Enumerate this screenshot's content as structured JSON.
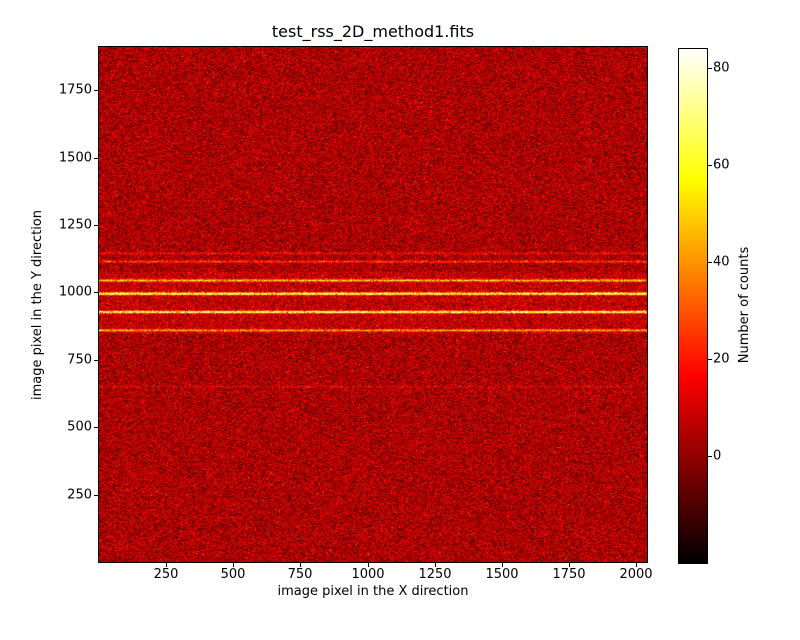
{
  "figure": {
    "background_color": "#ffffff"
  },
  "chart_data": {
    "type": "heatmap",
    "title": "test_rss_2D_method1.fits",
    "xlabel": "image pixel in the X direction",
    "ylabel": "image pixel in the Y direction",
    "colorbar_label": "Number of counts",
    "xlim": [
      0,
      2040
    ],
    "ylim": [
      0,
      1910
    ],
    "x_ticks": [
      250,
      500,
      750,
      1000,
      1250,
      1500,
      1750,
      2000
    ],
    "y_ticks": [
      250,
      500,
      750,
      1000,
      1250,
      1500,
      1750
    ],
    "colorbar_ticks": [
      0,
      20,
      40,
      60,
      80
    ],
    "colormap": "hot",
    "color_scale": {
      "vmin": -22,
      "vmax": 84
    },
    "grid": false,
    "legend": "none",
    "noise": {
      "mean": 4,
      "sigma": 8
    },
    "band": {
      "y0": 845,
      "y1": 1075,
      "level": 4
    },
    "lines": [
      {
        "y": 1145,
        "peak": 13,
        "sigma_y": 3.0
      },
      {
        "y": 1114,
        "peak": 24,
        "sigma_y": 3.0
      },
      {
        "y": 1044,
        "peak": 46,
        "sigma_y": 3.2
      },
      {
        "y": 995,
        "peak": 78,
        "sigma_y": 3.2
      },
      {
        "y": 927,
        "peak": 72,
        "sigma_y": 3.2
      },
      {
        "y": 859,
        "peak": 40,
        "sigma_y": 3.0
      },
      {
        "y": 650,
        "peak": 8,
        "sigma_y": 3.0
      }
    ]
  }
}
